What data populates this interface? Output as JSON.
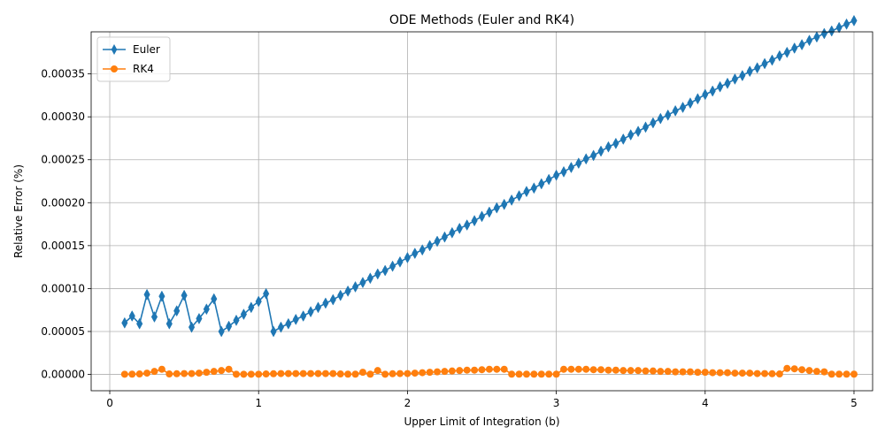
{
  "chart_data": {
    "type": "line",
    "title": "ODE Methods (Euler and RK4)",
    "xlabel": "Upper Limit of Integration (b)",
    "ylabel": "Relative Error (%)",
    "xlim": [
      -0.125,
      5.125
    ],
    "ylim": [
      -1.9e-05,
      0.000399
    ],
    "xticks": [
      0,
      1,
      2,
      3,
      4,
      5
    ],
    "xtick_labels": [
      "0",
      "1",
      "2",
      "3",
      "4",
      "5"
    ],
    "yticks": [
      0,
      5e-05,
      0.0001,
      0.00015,
      0.0002,
      0.00025,
      0.0003,
      0.00035
    ],
    "ytick_labels": [
      "0.00000",
      "0.00005",
      "0.00010",
      "0.00015",
      "0.00020",
      "0.00025",
      "0.00030",
      "0.00035"
    ],
    "grid": true,
    "legend_position": "top-left",
    "series": [
      {
        "name": "Euler",
        "color": "#1f77b4",
        "marker": "thin_diamond",
        "x": [
          0.1,
          0.15,
          0.2,
          0.25,
          0.3,
          0.35,
          0.4,
          0.45,
          0.5,
          0.55,
          0.6,
          0.65,
          0.7,
          0.75,
          0.8,
          0.85,
          0.9,
          0.95,
          1.0,
          1.05,
          1.1,
          1.15,
          1.2,
          1.25,
          1.3,
          1.35,
          1.4,
          1.45,
          1.5,
          1.55,
          1.6,
          1.65,
          1.7,
          1.75,
          1.8,
          1.85,
          1.9,
          1.95,
          2.0,
          2.05,
          2.1,
          2.15,
          2.2,
          2.25,
          2.3,
          2.35,
          2.4,
          2.45,
          2.5,
          2.55,
          2.6,
          2.65,
          2.7,
          2.75,
          2.8,
          2.85,
          2.9,
          2.95,
          3.0,
          3.05,
          3.1,
          3.15,
          3.2,
          3.25,
          3.3,
          3.35,
          3.4,
          3.45,
          3.5,
          3.55,
          3.6,
          3.65,
          3.7,
          3.75,
          3.8,
          3.85,
          3.9,
          3.95,
          4.0,
          4.05,
          4.1,
          4.15,
          4.2,
          4.25,
          4.3,
          4.35,
          4.4,
          4.45,
          4.5,
          4.55,
          4.6,
          4.65,
          4.7,
          4.75,
          4.8,
          4.85,
          4.9,
          4.95,
          5.0
        ],
        "y": [
          6e-05,
          6.8e-05,
          5.9e-05,
          9.3e-05,
          6.7e-05,
          9.1e-05,
          5.9e-05,
          7.4e-05,
          9.2e-05,
          5.5e-05,
          6.5e-05,
          7.6e-05,
          8.8e-05,
          5e-05,
          5.6e-05,
          6.3e-05,
          7e-05,
          7.8e-05,
          8.5e-05,
          9.4e-05,
          5e-05,
          5.5e-05,
          5.9e-05,
          6.4e-05,
          6.8e-05,
          7.3e-05,
          7.8e-05,
          8.3e-05,
          8.7e-05,
          9.2e-05,
          9.7e-05,
          0.000102,
          0.000107,
          0.000112,
          0.000117,
          0.000121,
          0.000126,
          0.000131,
          0.000136,
          0.000141,
          0.000145,
          0.00015,
          0.000155,
          0.00016,
          0.000165,
          0.00017,
          0.000174,
          0.000179,
          0.000184,
          0.000189,
          0.000194,
          0.000198,
          0.000203,
          0.000208,
          0.000213,
          0.000217,
          0.000222,
          0.000227,
          0.000232,
          0.000236,
          0.000241,
          0.000246,
          0.000251,
          0.000255,
          0.00026,
          0.000265,
          0.000269,
          0.000274,
          0.000279,
          0.000283,
          0.000288,
          0.000293,
          0.000298,
          0.000302,
          0.000307,
          0.000311,
          0.000316,
          0.000321,
          0.000326,
          0.00033,
          0.000335,
          0.000339,
          0.000344,
          0.000348,
          0.000353,
          0.000357,
          0.000362,
          0.000366,
          0.000371,
          0.000375,
          0.00038,
          0.000384,
          0.000389,
          0.000393,
          0.000397,
          0.0004,
          0.000404,
          0.000408,
          0.000412
        ]
      },
      {
        "name": "RK4",
        "color": "#ff7f0e",
        "marker": "circle",
        "x": [
          0.1,
          0.15,
          0.2,
          0.25,
          0.3,
          0.35,
          0.4,
          0.45,
          0.5,
          0.55,
          0.6,
          0.65,
          0.7,
          0.75,
          0.8,
          0.85,
          0.9,
          0.95,
          1.0,
          1.05,
          1.1,
          1.15,
          1.2,
          1.25,
          1.3,
          1.35,
          1.4,
          1.45,
          1.5,
          1.55,
          1.6,
          1.65,
          1.7,
          1.75,
          1.8,
          1.85,
          1.9,
          1.95,
          2.0,
          2.05,
          2.1,
          2.15,
          2.2,
          2.25,
          2.3,
          2.35,
          2.4,
          2.45,
          2.5,
          2.55,
          2.6,
          2.65,
          2.7,
          2.75,
          2.8,
          2.85,
          2.9,
          2.95,
          3.0,
          3.05,
          3.1,
          3.15,
          3.2,
          3.25,
          3.3,
          3.35,
          3.4,
          3.45,
          3.5,
          3.55,
          3.6,
          3.65,
          3.7,
          3.75,
          3.8,
          3.85,
          3.9,
          3.95,
          4.0,
          4.05,
          4.1,
          4.15,
          4.2,
          4.25,
          4.3,
          4.35,
          4.4,
          4.45,
          4.5,
          4.55,
          4.6,
          4.65,
          4.7,
          4.75,
          4.8,
          4.85,
          4.9,
          4.95,
          5.0
        ],
        "y": [
          2e-07,
          3e-07,
          5e-07,
          1.5e-06,
          3.5e-06,
          6e-06,
          5e-07,
          8e-07,
          1e-06,
          1e-06,
          1.5e-06,
          2.5e-06,
          3.5e-06,
          4.5e-06,
          6e-06,
          2e-07,
          2e-07,
          2e-07,
          2e-07,
          5e-07,
          8e-07,
          1e-06,
          1e-06,
          1e-06,
          1e-06,
          1e-06,
          1e-06,
          1e-06,
          1e-06,
          5e-07,
          3e-07,
          3e-07,
          2.5e-06,
          3e-07,
          4.5e-06,
          2e-07,
          8e-07,
          1e-06,
          1e-06,
          1.5e-06,
          2e-06,
          2.5e-06,
          3e-06,
          3.5e-06,
          4e-06,
          4.5e-06,
          5e-06,
          5e-06,
          5.5e-06,
          6e-06,
          6e-06,
          6e-06,
          3e-07,
          3e-07,
          3e-07,
          3e-07,
          3e-07,
          3e-07,
          3e-07,
          6e-06,
          6e-06,
          6e-06,
          6e-06,
          5.5e-06,
          5.5e-06,
          5e-06,
          5e-06,
          4.5e-06,
          4.5e-06,
          4.5e-06,
          4e-06,
          4e-06,
          3.5e-06,
          3.5e-06,
          3e-06,
          3e-06,
          3e-06,
          2.5e-06,
          2.5e-06,
          2e-06,
          2e-06,
          2e-06,
          1.5e-06,
          1.5e-06,
          1.5e-06,
          1e-06,
          1e-06,
          8e-07,
          5e-07,
          7e-06,
          6.5e-06,
          5.5e-06,
          4.5e-06,
          3.5e-06,
          3e-06,
          3e-07,
          3e-07,
          3e-07,
          3e-07
        ]
      }
    ]
  }
}
